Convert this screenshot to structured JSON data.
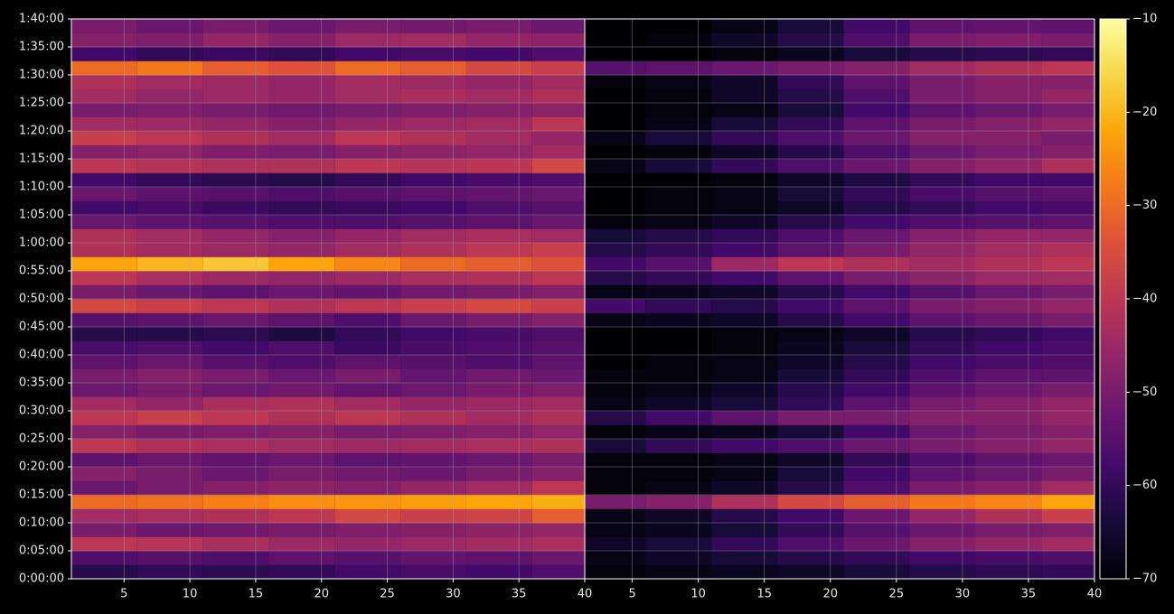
{
  "chart_data": {
    "type": "heatmap",
    "colormap": "inferno",
    "grid": true,
    "ylim": [
      0,
      6000
    ],
    "yticks": [
      {
        "value": 0,
        "label": "0:00:00"
      },
      {
        "value": 300,
        "label": "0:05:00"
      },
      {
        "value": 600,
        "label": "0:10:00"
      },
      {
        "value": 900,
        "label": "0:15:00"
      },
      {
        "value": 1200,
        "label": "0:20:00"
      },
      {
        "value": 1500,
        "label": "0:25:00"
      },
      {
        "value": 1800,
        "label": "0:30:00"
      },
      {
        "value": 2100,
        "label": "0:35:00"
      },
      {
        "value": 2400,
        "label": "0:40:00"
      },
      {
        "value": 2700,
        "label": "0:45:00"
      },
      {
        "value": 3000,
        "label": "0:50:00"
      },
      {
        "value": 3300,
        "label": "0:55:00"
      },
      {
        "value": 3600,
        "label": "1:00:00"
      },
      {
        "value": 3900,
        "label": "1:05:00"
      },
      {
        "value": 4200,
        "label": "1:10:00"
      },
      {
        "value": 4500,
        "label": "1:15:00"
      },
      {
        "value": 4800,
        "label": "1:20:00"
      },
      {
        "value": 5100,
        "label": "1:25:00"
      },
      {
        "value": 5400,
        "label": "1:30:00"
      },
      {
        "value": 5700,
        "label": "1:35:00"
      },
      {
        "value": 6000,
        "label": "1:40:00"
      }
    ],
    "y_bins": [
      0,
      150,
      300,
      450,
      600,
      750,
      900,
      1050,
      1200,
      1350,
      1500,
      1650,
      1800,
      1950,
      2100,
      2250,
      2400,
      2550,
      2700,
      2850,
      3000,
      3150,
      3300,
      3450,
      3600,
      3750,
      3900,
      4050,
      4200,
      4350,
      4500,
      4650,
      4800,
      4950,
      5100,
      5250,
      5400,
      5550,
      5700,
      5850,
      6000
    ],
    "colorbar": {
      "clim": [
        -70,
        -10
      ],
      "ticks": [
        {
          "value": -70,
          "label": "−70"
        },
        {
          "value": -60,
          "label": "−60"
        },
        {
          "value": -50,
          "label": "−50"
        },
        {
          "value": -40,
          "label": "−40"
        },
        {
          "value": -30,
          "label": "−30"
        },
        {
          "value": -20,
          "label": "−20"
        },
        {
          "value": -10,
          "label": "−10"
        }
      ]
    },
    "panels": [
      {
        "xlim": [
          1,
          40
        ],
        "xticks": [
          5,
          10,
          15,
          20,
          25,
          30,
          35,
          40
        ],
        "x_bins": [
          1,
          6,
          11,
          16,
          21,
          26,
          31,
          36,
          40
        ],
        "values": [
          [
            -62,
            -60,
            -61,
            -60,
            -58,
            -57,
            -58,
            -56
          ],
          [
            -56,
            -55,
            -56,
            -54,
            -55,
            -53,
            -54,
            -52
          ],
          [
            -40,
            -41,
            -43,
            -45,
            -46,
            -45,
            -44,
            -43
          ],
          [
            -50,
            -52,
            -51,
            -50,
            -49,
            -48,
            -47,
            -46
          ],
          [
            -44,
            -43,
            -42,
            -40,
            -36,
            -38,
            -37,
            -32
          ],
          [
            -30,
            -29,
            -27,
            -25,
            -24,
            -23,
            -22,
            -21
          ],
          [
            -52,
            -50,
            -48,
            -47,
            -48,
            -46,
            -44,
            -40
          ],
          [
            -48,
            -50,
            -52,
            -50,
            -51,
            -52,
            -50,
            -48
          ],
          [
            -54,
            -52,
            -53,
            -52,
            -54,
            -53,
            -52,
            -50
          ],
          [
            -40,
            -42,
            -43,
            -44,
            -45,
            -44,
            -43,
            -42
          ],
          [
            -48,
            -50,
            -49,
            -48,
            -50,
            -49,
            -48,
            -46
          ],
          [
            -40,
            -38,
            -40,
            -42,
            -40,
            -42,
            -44,
            -42
          ],
          [
            -44,
            -46,
            -43,
            -42,
            -44,
            -46,
            -45,
            -44
          ],
          [
            -52,
            -50,
            -52,
            -51,
            -53,
            -52,
            -50,
            -49
          ],
          [
            -50,
            -48,
            -50,
            -52,
            -50,
            -53,
            -51,
            -52
          ],
          [
            -54,
            -52,
            -55,
            -56,
            -54,
            -55,
            -56,
            -54
          ],
          [
            -57,
            -56,
            -58,
            -56,
            -59,
            -57,
            -56,
            -55
          ],
          [
            -62,
            -62,
            -61,
            -63,
            -60,
            -58,
            -57,
            -56
          ],
          [
            -55,
            -54,
            -52,
            -54,
            -56,
            -52,
            -50,
            -48
          ],
          [
            -36,
            -38,
            -40,
            -42,
            -40,
            -38,
            -36,
            -38
          ],
          [
            -50,
            -52,
            -54,
            -52,
            -53,
            -51,
            -50,
            -48
          ],
          [
            -40,
            -43,
            -45,
            -46,
            -45,
            -43,
            -42,
            -40
          ],
          [
            -22,
            -20,
            -18,
            -22,
            -26,
            -30,
            -32,
            -34
          ],
          [
            -42,
            -44,
            -45,
            -46,
            -44,
            -42,
            -40,
            -38
          ],
          [
            -42,
            -44,
            -46,
            -48,
            -46,
            -44,
            -43,
            -44
          ],
          [
            -52,
            -54,
            -55,
            -56,
            -56,
            -55,
            -54,
            -52
          ],
          [
            -58,
            -57,
            -59,
            -60,
            -59,
            -58,
            -56,
            -55
          ],
          [
            -52,
            -54,
            -55,
            -56,
            -55,
            -54,
            -53,
            -52
          ],
          [
            -58,
            -60,
            -61,
            -62,
            -60,
            -58,
            -57,
            -56
          ],
          [
            -40,
            -41,
            -42,
            -42,
            -40,
            -41,
            -40,
            -36
          ],
          [
            -48,
            -47,
            -49,
            -50,
            -48,
            -47,
            -46,
            -44
          ],
          [
            -38,
            -40,
            -42,
            -44,
            -40,
            -42,
            -44,
            -46
          ],
          [
            -44,
            -45,
            -46,
            -48,
            -46,
            -45,
            -44,
            -40
          ],
          [
            -50,
            -49,
            -50,
            -51,
            -50,
            -49,
            -48,
            -47
          ],
          [
            -44,
            -46,
            -45,
            -46,
            -44,
            -43,
            -44,
            -42
          ],
          [
            -42,
            -44,
            -45,
            -46,
            -44,
            -45,
            -46,
            -44
          ],
          [
            -30,
            -28,
            -32,
            -34,
            -30,
            -32,
            -36,
            -38
          ],
          [
            -58,
            -60,
            -59,
            -60,
            -58,
            -57,
            -58,
            -56
          ],
          [
            -48,
            -49,
            -46,
            -48,
            -45,
            -44,
            -46,
            -47
          ],
          [
            -50,
            -52,
            -50,
            -52,
            -50,
            -51,
            -50,
            -52
          ]
        ]
      },
      {
        "xlim": [
          1.4,
          40
        ],
        "xticks": [
          5,
          10,
          15,
          20,
          25,
          30,
          35,
          40
        ],
        "x_bins": [
          1.4,
          6,
          11,
          16,
          21,
          26,
          31,
          36,
          40
        ],
        "values": [
          [
            -69,
            -68,
            -67,
            -66,
            -64,
            -62,
            -61,
            -60
          ],
          [
            -68,
            -66,
            -64,
            -62,
            -60,
            -58,
            -57,
            -56
          ],
          [
            -66,
            -64,
            -60,
            -56,
            -52,
            -48,
            -46,
            -44
          ],
          [
            -68,
            -67,
            -64,
            -60,
            -55,
            -52,
            -50,
            -49
          ],
          [
            -68,
            -66,
            -62,
            -58,
            -52,
            -46,
            -42,
            -38
          ],
          [
            -50,
            -48,
            -42,
            -36,
            -32,
            -28,
            -26,
            -22
          ],
          [
            -69,
            -68,
            -66,
            -62,
            -56,
            -50,
            -48,
            -44
          ],
          [
            -69,
            -69,
            -68,
            -64,
            -58,
            -54,
            -52,
            -50
          ],
          [
            -69,
            -69,
            -68,
            -66,
            -60,
            -56,
            -54,
            -52
          ],
          [
            -64,
            -60,
            -58,
            -56,
            -52,
            -50,
            -48,
            -46
          ],
          [
            -69,
            -68,
            -67,
            -64,
            -58,
            -52,
            -50,
            -48
          ],
          [
            -62,
            -58,
            -54,
            -50,
            -50,
            -48,
            -48,
            -46
          ],
          [
            -68,
            -66,
            -64,
            -60,
            -54,
            -50,
            -48,
            -46
          ],
          [
            -69,
            -68,
            -66,
            -62,
            -58,
            -54,
            -52,
            -50
          ],
          [
            -69,
            -69,
            -68,
            -64,
            -60,
            -56,
            -54,
            -54
          ],
          [
            -70,
            -69,
            -68,
            -66,
            -62,
            -58,
            -57,
            -56
          ],
          [
            -70,
            -70,
            -69,
            -67,
            -64,
            -60,
            -58,
            -57
          ],
          [
            -70,
            -70,
            -69,
            -68,
            -66,
            -62,
            -60,
            -58
          ],
          [
            -68,
            -67,
            -66,
            -62,
            -58,
            -54,
            -52,
            -50
          ],
          [
            -58,
            -60,
            -62,
            -58,
            -54,
            -50,
            -48,
            -46
          ],
          [
            -68,
            -67,
            -66,
            -62,
            -58,
            -55,
            -52,
            -50
          ],
          [
            -62,
            -60,
            -58,
            -54,
            -50,
            -47,
            -45,
            -44
          ],
          [
            -58,
            -55,
            -45,
            -40,
            -42,
            -44,
            -42,
            -40
          ],
          [
            -62,
            -60,
            -58,
            -54,
            -50,
            -46,
            -44,
            -42
          ],
          [
            -64,
            -62,
            -60,
            -56,
            -52,
            -48,
            -46,
            -46
          ],
          [
            -69,
            -68,
            -66,
            -62,
            -58,
            -56,
            -55,
            -54
          ],
          [
            -70,
            -69,
            -68,
            -66,
            -62,
            -60,
            -58,
            -57
          ],
          [
            -70,
            -69,
            -68,
            -64,
            -60,
            -57,
            -55,
            -54
          ],
          [
            -70,
            -70,
            -69,
            -66,
            -63,
            -60,
            -58,
            -58
          ],
          [
            -68,
            -64,
            -60,
            -56,
            -52,
            -48,
            -46,
            -42
          ],
          [
            -70,
            -69,
            -66,
            -62,
            -56,
            -52,
            -50,
            -48
          ],
          [
            -68,
            -64,
            -60,
            -56,
            -52,
            -48,
            -48,
            -50
          ],
          [
            -70,
            -68,
            -64,
            -60,
            -54,
            -50,
            -48,
            -46
          ],
          [
            -70,
            -69,
            -68,
            -64,
            -58,
            -54,
            -52,
            -50
          ],
          [
            -70,
            -69,
            -66,
            -62,
            -56,
            -50,
            -48,
            -46
          ],
          [
            -69,
            -68,
            -66,
            -60,
            -54,
            -50,
            -48,
            -48
          ],
          [
            -55,
            -54,
            -52,
            -50,
            -48,
            -44,
            -42,
            -40
          ],
          [
            -70,
            -70,
            -69,
            -67,
            -64,
            -62,
            -61,
            -60
          ],
          [
            -70,
            -69,
            -66,
            -62,
            -56,
            -50,
            -49,
            -50
          ],
          [
            -70,
            -70,
            -68,
            -64,
            -58,
            -54,
            -53,
            -54
          ]
        ]
      }
    ]
  }
}
